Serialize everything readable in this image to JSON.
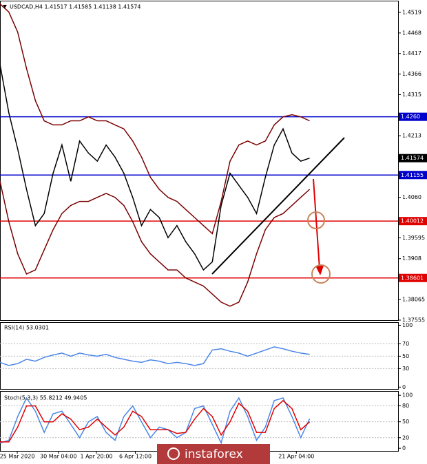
{
  "chart_data": [
    {
      "type": "line",
      "title": "USDCAD,H4  1.41517 1.41585 1.41138 1.41574",
      "x": [
        0,
        1,
        2,
        3,
        4,
        5,
        6,
        7,
        8,
        9,
        10,
        11,
        12,
        13,
        14,
        15,
        16,
        17,
        18,
        19,
        20,
        21,
        22,
        23,
        24,
        25,
        26,
        27,
        28,
        29,
        30,
        31,
        32,
        33,
        34,
        35
      ],
      "xlim": [
        0,
        45
      ],
      "xticks": [
        {
          "value": 1.95,
          "label": "25 Mar 2020"
        },
        {
          "value": 6.6,
          "label": "30 Mar 04:00"
        },
        {
          "value": 10.9,
          "label": "1 Apr 20:00"
        },
        {
          "value": 15.3,
          "label": "6 Apr 12:00"
        },
        {
          "value": 33.5,
          "label": "21 Apr 04:00"
        }
      ],
      "ylim": [
        1.37555,
        1.45481
      ],
      "yticks": [
        1.4519,
        1.4468,
        1.4417,
        1.4366,
        1.4315,
        1.4213,
        {
          "value": 1.406,
          "label": "1.4060"
        },
        1.39595,
        1.3908,
        1.38065,
        1.37555
      ],
      "levels": [
        {
          "value": 1.426,
          "label": "1.4260",
          "color": "#0000cc"
        },
        {
          "value": 1.41155,
          "label": "1.41155",
          "color": "#0000cc"
        },
        {
          "value": 1.40012,
          "label": "1.40012",
          "color": "#e00000"
        },
        {
          "value": 1.38601,
          "label": "1.38601",
          "color": "#e00000"
        }
      ],
      "last_price": 1.41574,
      "series": [
        {
          "color": "#7a0000",
          "values": [
            1.454,
            1.452,
            1.447,
            1.438,
            1.43,
            1.425,
            1.424,
            1.424,
            1.425,
            1.425,
            1.426,
            1.425,
            1.425,
            1.424,
            1.423,
            1.42,
            1.416,
            1.411,
            1.408,
            1.406,
            1.405,
            1.403,
            1.401,
            1.399,
            1.397,
            1.405,
            1.415,
            1.419,
            1.42,
            1.419,
            1.42,
            1.424,
            1.426,
            1.4265,
            1.426,
            1.425
          ]
        },
        {
          "color": "#7a0000",
          "values": [
            1.41,
            1.4,
            1.392,
            1.387,
            1.388,
            1.393,
            1.398,
            1.402,
            1.404,
            1.405,
            1.405,
            1.406,
            1.407,
            1.406,
            1.404,
            1.4,
            1.395,
            1.392,
            1.39,
            1.388,
            1.388,
            1.386,
            1.385,
            1.384,
            1.382,
            1.38,
            1.379,
            1.38,
            1.385,
            1.392,
            1.398,
            1.401,
            1.402,
            1.404,
            1.406,
            1.408
          ]
        },
        {
          "color": "#000000",
          "values": [
            1.439,
            1.427,
            1.418,
            1.408,
            1.399,
            1.402,
            1.412,
            1.419,
            1.41,
            1.42,
            1.417,
            1.415,
            1.419,
            1.416,
            1.412,
            1.406,
            1.399,
            1.403,
            1.401,
            1.396,
            1.399,
            1.395,
            1.392,
            1.388,
            1.39,
            1.404,
            1.412,
            1.409,
            1.406,
            1.402,
            1.411,
            1.419,
            1.423,
            1.417,
            1.415,
            1.41574
          ]
        }
      ]
    },
    {
      "type": "line",
      "title": "RSI(14) 53.0301",
      "x": [
        0,
        1,
        2,
        3,
        4,
        5,
        6,
        7,
        8,
        9,
        10,
        11,
        12,
        13,
        14,
        15,
        16,
        17,
        18,
        19,
        20,
        21,
        22,
        23,
        24,
        25,
        26,
        27,
        28,
        29,
        30,
        31,
        32,
        33,
        34,
        35
      ],
      "xlim": [
        0,
        45
      ],
      "ylim": [
        -3,
        105
      ],
      "yticks": [
        100,
        70,
        50,
        30,
        0
      ],
      "series": [
        {
          "color": "#4a86e8",
          "values": [
            40,
            35,
            38,
            45,
            42,
            48,
            52,
            55,
            50,
            55,
            52,
            50,
            53,
            48,
            45,
            42,
            40,
            44,
            42,
            38,
            40,
            38,
            35,
            38,
            60,
            62,
            58,
            55,
            50,
            55,
            60,
            65,
            62,
            58,
            55,
            53.0301
          ]
        }
      ]
    },
    {
      "type": "line",
      "title": "Stoch(5,3,3) 55.8212 49.9405",
      "x": [
        0,
        1,
        2,
        3,
        4,
        5,
        6,
        7,
        8,
        9,
        10,
        11,
        12,
        13,
        14,
        15,
        16,
        17,
        18,
        19,
        20,
        21,
        22,
        23,
        24,
        25,
        26,
        27,
        28,
        29,
        30,
        31,
        32,
        33,
        34,
        35
      ],
      "xlim": [
        0,
        45
      ],
      "ylim": [
        -5,
        108
      ],
      "yticks": [
        100,
        80,
        50,
        20,
        0
      ],
      "series": [
        {
          "color": "#4a86e8",
          "values": [
            10,
            15,
            60,
            95,
            70,
            30,
            65,
            70,
            45,
            20,
            50,
            60,
            30,
            15,
            60,
            80,
            50,
            20,
            40,
            35,
            20,
            30,
            75,
            80,
            45,
            10,
            70,
            95,
            60,
            15,
            40,
            90,
            95,
            60,
            20,
            55.8212
          ]
        },
        {
          "color": "#e00000",
          "values": [
            12,
            12,
            40,
            80,
            80,
            50,
            50,
            65,
            55,
            35,
            40,
            55,
            40,
            25,
            40,
            70,
            60,
            35,
            35,
            35,
            28,
            30,
            55,
            75,
            60,
            25,
            50,
            85,
            70,
            30,
            30,
            75,
            90,
            75,
            35,
            49.9405
          ]
        }
      ]
    }
  ],
  "watermark": "instaforex"
}
